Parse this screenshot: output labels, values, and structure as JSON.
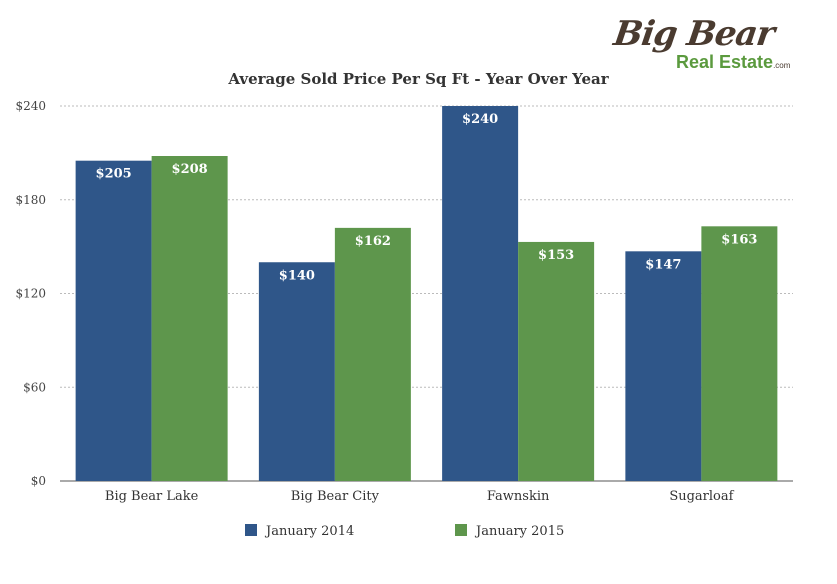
{
  "logo": {
    "name": "Big Bear",
    "sub": "Real Estate",
    "suffix": ".com"
  },
  "colors": {
    "jan2014": "#2f5689",
    "jan2015": "#5e964c",
    "grid": "#bbbbbb",
    "axis": "#555555"
  },
  "chart_data": {
    "type": "bar",
    "title": "Average Sold Price Per Sq Ft - Year Over Year",
    "xlabel": "",
    "ylabel": "",
    "categories": [
      "Big Bear Lake",
      "Big Bear City",
      "Fawnskin",
      "Sugarloaf"
    ],
    "series": [
      {
        "name": "January 2014",
        "values": [
          205,
          140,
          240,
          147
        ],
        "labels": [
          "$205",
          "$140",
          "$240",
          "$147"
        ]
      },
      {
        "name": "January 2015",
        "values": [
          208,
          162,
          153,
          163
        ],
        "labels": [
          "$208",
          "$162",
          "$153",
          "$163"
        ]
      }
    ],
    "ylim": [
      0,
      240
    ],
    "yticks": [
      0,
      60,
      120,
      180,
      240
    ],
    "ytick_labels": [
      "$0",
      "$60",
      "$120",
      "$180",
      "$240"
    ],
    "grid": true,
    "legend": "bottom"
  }
}
